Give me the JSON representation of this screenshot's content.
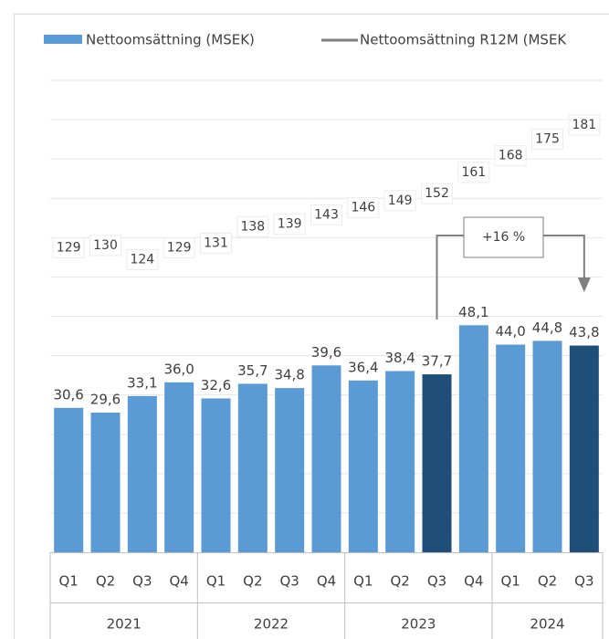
{
  "chart_data": {
    "type": "bar_line",
    "categories": [
      "Q1",
      "Q2",
      "Q3",
      "Q4",
      "Q1",
      "Q2",
      "Q3",
      "Q4",
      "Q1",
      "Q2",
      "Q3",
      "Q4",
      "Q1",
      "Q2",
      "Q3"
    ],
    "category_groups": [
      "2021",
      "2022",
      "2023",
      "2024"
    ],
    "series": [
      {
        "name": "Nettoomsättning (MSEK)",
        "type": "bar",
        "color": "#5b9bd5",
        "colors": [
          "#5b9bd5",
          "#5b9bd5",
          "#5b9bd5",
          "#5b9bd5",
          "#5b9bd5",
          "#5b9bd5",
          "#5b9bd5",
          "#5b9bd5",
          "#5b9bd5",
          "#5b9bd5",
          "#1f4e79",
          "#5b9bd5",
          "#5b9bd5",
          "#5b9bd5",
          "#1f4e79"
        ],
        "values": [
          30.6,
          29.6,
          33.1,
          36.0,
          32.6,
          35.7,
          34.8,
          39.6,
          36.4,
          38.4,
          37.7,
          48.1,
          44.0,
          44.8,
          43.8
        ],
        "value_labels": [
          "30,6",
          "29,6",
          "33,1",
          "36,0",
          "32,6",
          "35,7",
          "34,8",
          "39,6",
          "36,4",
          "38,4",
          "37,7",
          "48,1",
          "44,0",
          "44,8",
          "43,8"
        ]
      },
      {
        "name": "Nettoomsättning R12M (MSEK",
        "type": "line",
        "axis": "y2",
        "color": "#7f7f7f",
        "values": [
          129,
          130,
          124,
          129,
          131,
          138,
          139,
          143,
          146,
          149,
          152,
          161,
          168,
          175,
          181
        ]
      }
    ],
    "annotation": "+16 %",
    "ylim": [
      0,
      100
    ],
    "y2lim": [
      0,
      200
    ],
    "grid": true
  }
}
